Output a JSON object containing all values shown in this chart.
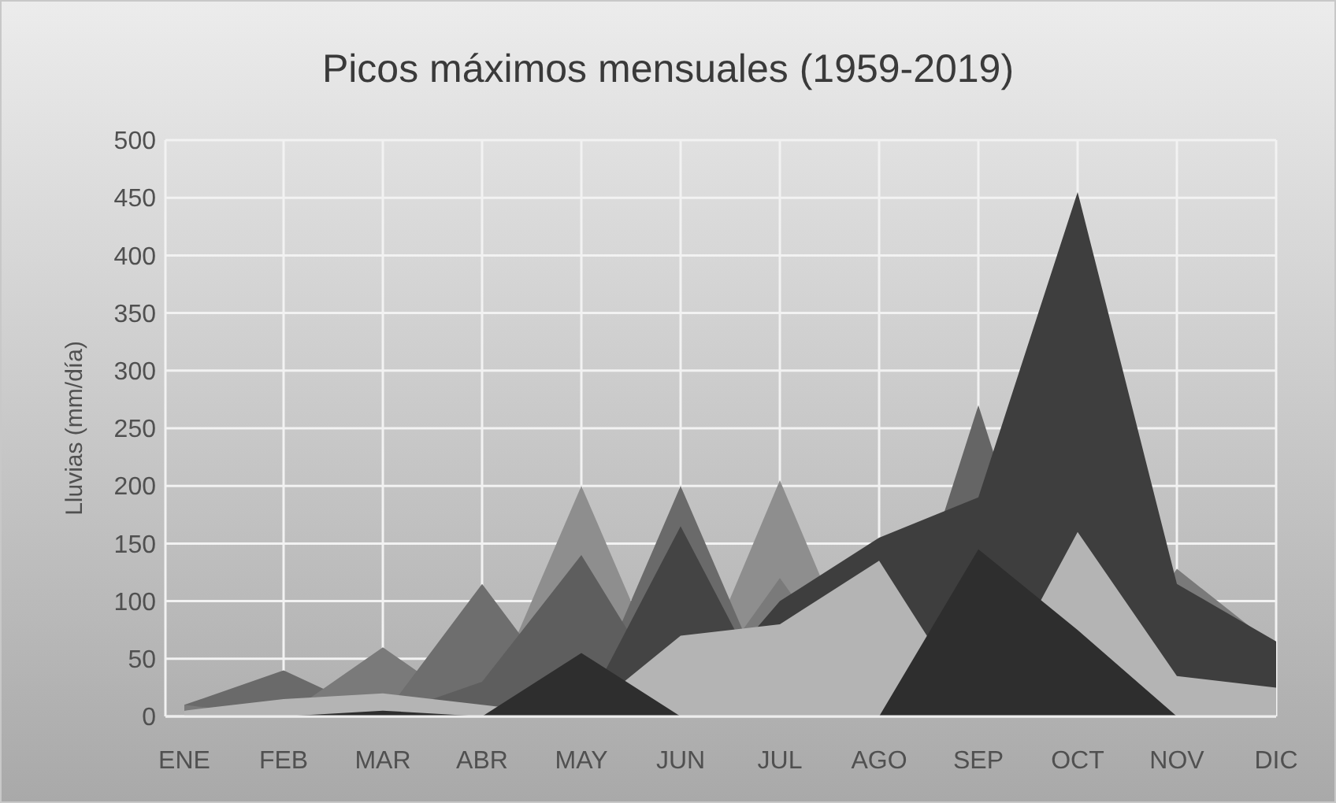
{
  "chart_data": {
    "type": "area",
    "title": "Picos máximos mensuales (1959-2019)",
    "ylabel": "Lluvias (mm/día)",
    "categories": [
      "ENE",
      "FEB",
      "MAR",
      "ABR",
      "MAY",
      "JUN",
      "JUL",
      "AGO",
      "SEP",
      "OCT",
      "NOV",
      "DIC"
    ],
    "ylim": [
      0,
      500
    ],
    "yticks": [
      0,
      50,
      100,
      150,
      200,
      250,
      300,
      350,
      400,
      450,
      500
    ],
    "grid": true,
    "series": [
      {
        "color": "#8e8e8e",
        "values": [
          5,
          null,
          null,
          0,
          200,
          null,
          205,
          null,
          null,
          null,
          null,
          20
        ]
      },
      {
        "color": "#6a6a6a",
        "values": [
          10,
          40,
          null,
          0,
          null,
          200,
          null,
          null,
          null,
          null,
          null,
          10
        ]
      },
      {
        "color": "#656565",
        "values": [
          5,
          null,
          null,
          null,
          0,
          0,
          null,
          null,
          270,
          null,
          null,
          40
        ]
      },
      {
        "color": "#7a7a7a",
        "values": [
          10,
          null,
          60,
          null,
          null,
          null,
          120,
          null,
          null,
          null,
          128,
          60
        ]
      },
      {
        "color": "#3e3e3e",
        "values": [
          5,
          null,
          null,
          0,
          0,
          0,
          100,
          155,
          190,
          455,
          115,
          65
        ]
      },
      {
        "color": "#6e6e6e",
        "values": [
          5,
          null,
          null,
          115,
          null,
          null,
          null,
          null,
          null,
          null,
          null,
          5
        ]
      },
      {
        "color": "#5e5e5e",
        "values": [
          0,
          null,
          null,
          30,
          140,
          null,
          null,
          null,
          null,
          null,
          null,
          5
        ]
      },
      {
        "color": "#444444",
        "values": [
          0,
          null,
          null,
          0,
          0,
          165,
          null,
          null,
          null,
          null,
          null,
          10
        ]
      },
      {
        "color": "#b4b4b4",
        "values": [
          5,
          15,
          20,
          10,
          null,
          70,
          80,
          135,
          null,
          160,
          35,
          25
        ]
      },
      {
        "color": "#2e2e2e",
        "values": [
          0,
          0,
          5,
          0,
          55,
          0,
          0,
          0,
          145,
          75,
          0,
          0
        ]
      }
    ]
  }
}
